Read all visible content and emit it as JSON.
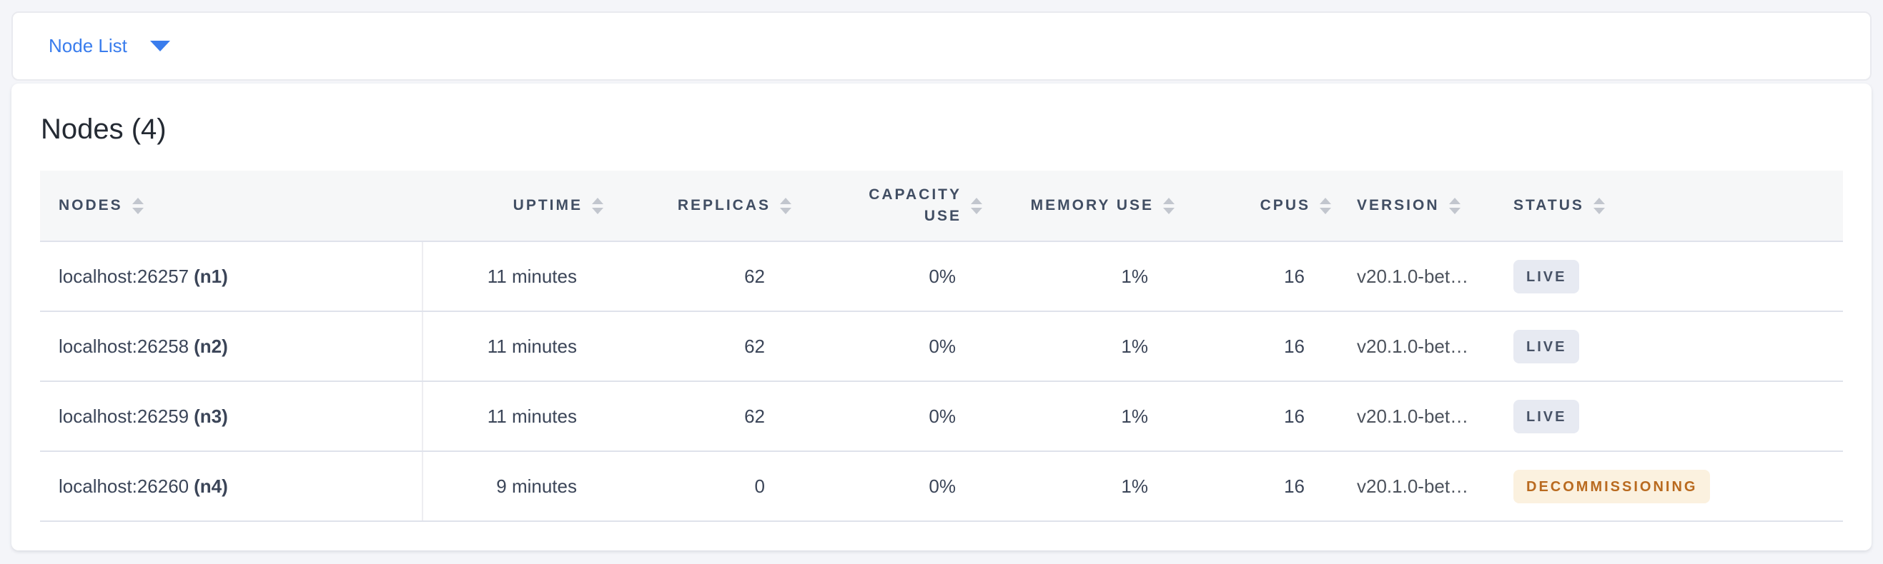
{
  "selector": {
    "label": "Node List"
  },
  "heading": "Nodes (4)",
  "table": {
    "columns": [
      {
        "key": "nodes",
        "label": "Nodes",
        "align": "left"
      },
      {
        "key": "uptime",
        "label": "Uptime",
        "align": "right"
      },
      {
        "key": "replicas",
        "label": "Replicas",
        "align": "right"
      },
      {
        "key": "capacity",
        "label": "Capacity Use",
        "align": "right"
      },
      {
        "key": "memory",
        "label": "Memory Use",
        "align": "right"
      },
      {
        "key": "cpus",
        "label": "CPUs",
        "align": "right"
      },
      {
        "key": "version",
        "label": "Version",
        "align": "left"
      },
      {
        "key": "status",
        "label": "Status",
        "align": "left"
      }
    ],
    "rows": [
      {
        "address": "localhost:26257",
        "node_id": "(n1)",
        "uptime": "11 minutes",
        "replicas": "62",
        "capacity_use": "0%",
        "memory_use": "1%",
        "cpus": "16",
        "version": "v20.1.0-bet…",
        "status": "LIVE"
      },
      {
        "address": "localhost:26258",
        "node_id": "(n2)",
        "uptime": "11 minutes",
        "replicas": "62",
        "capacity_use": "0%",
        "memory_use": "1%",
        "cpus": "16",
        "version": "v20.1.0-bet…",
        "status": "LIVE"
      },
      {
        "address": "localhost:26259",
        "node_id": "(n3)",
        "uptime": "11 minutes",
        "replicas": "62",
        "capacity_use": "0%",
        "memory_use": "1%",
        "cpus": "16",
        "version": "v20.1.0-bet…",
        "status": "LIVE"
      },
      {
        "address": "localhost:26260",
        "node_id": "(n4)",
        "uptime": "9 minutes",
        "replicas": "0",
        "capacity_use": "0%",
        "memory_use": "1%",
        "cpus": "16",
        "version": "v20.1.0-bet…",
        "status": "DECOMMISSIONING"
      }
    ]
  },
  "colors": {
    "accent_blue": "#3a7ded",
    "page_background": "#f4f5f9",
    "header_text": "#414e63",
    "live_badge_bg": "#e7eaf2",
    "live_badge_text": "#475266",
    "decommissioning_badge_bg": "#fbf1df",
    "decommissioning_badge_text": "#b96a1f"
  }
}
